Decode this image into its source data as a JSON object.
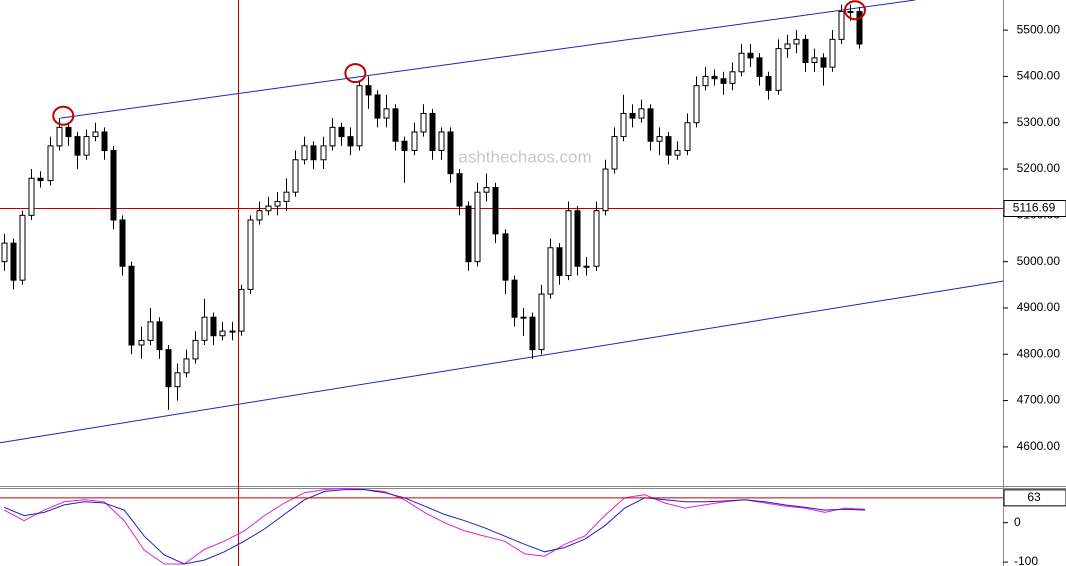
{
  "chart_data": {
    "type": "candlestick",
    "xlim": [
      -0.45,
      109.77
    ],
    "ylim": [
      4522,
      5565
    ],
    "yticks": [
      {
        "value": 4600,
        "label": "4600.00"
      },
      {
        "value": 4700,
        "label": "4700.00"
      },
      {
        "value": 4800,
        "label": "4800.00"
      },
      {
        "value": 4900,
        "label": "4900.00"
      },
      {
        "value": 5000,
        "label": "5000.00"
      },
      {
        "value": 5100,
        "label": "5100.00"
      },
      {
        "value": 5200,
        "label": "5200.00"
      },
      {
        "value": 5300,
        "label": "5300.00"
      },
      {
        "value": 5400,
        "label": "5400.00"
      },
      {
        "value": 5500,
        "label": "5500.00"
      }
    ],
    "open": [
      5000,
      5040,
      4960,
      5100,
      5180,
      5175,
      5250,
      5290,
      5270,
      5230,
      5270,
      5280,
      5240,
      5090,
      4990,
      4820,
      4830,
      4870,
      4810,
      4730,
      4760,
      4790,
      4830,
      4880,
      4840,
      4850,
      4850,
      4940,
      5090,
      5110,
      5120,
      5130,
      5150,
      5220,
      5250,
      5220,
      5250,
      5290,
      5270,
      5250,
      5380,
      5360,
      5310,
      5330,
      5260,
      5240,
      5280,
      5320,
      5240,
      5280,
      5190,
      5120,
      5000,
      5150,
      5160,
      5060,
      4960,
      4880,
      4880,
      4810,
      4930,
      5030,
      4970,
      5110,
      4990,
      4990,
      5110,
      5200,
      5270,
      5320,
      5310,
      5330,
      5260,
      5270,
      5230,
      5240,
      5300,
      5380,
      5400,
      5395,
      5385,
      5410,
      5450,
      5440,
      5400,
      5370,
      5460,
      5470,
      5480,
      5430,
      5440,
      5420,
      5480,
      5540,
      5540
    ],
    "high": [
      5060,
      5050,
      5110,
      5200,
      5195,
      5270,
      5310,
      5300,
      5280,
      5285,
      5300,
      5290,
      5250,
      5100,
      5000,
      4860,
      4900,
      4880,
      4820,
      4780,
      4810,
      4850,
      4920,
      4890,
      4870,
      4870,
      4950,
      5100,
      5130,
      5140,
      5150,
      5180,
      5240,
      5270,
      5260,
      5270,
      5310,
      5300,
      5290,
      5390,
      5400,
      5370,
      5360,
      5340,
      5270,
      5300,
      5340,
      5330,
      5290,
      5290,
      5200,
      5130,
      5170,
      5190,
      5170,
      5070,
      4970,
      4900,
      4890,
      4950,
      5050,
      5040,
      5130,
      5120,
      5010,
      5130,
      5220,
      5290,
      5360,
      5340,
      5350,
      5340,
      5290,
      5280,
      5260,
      5320,
      5400,
      5420,
      5415,
      5410,
      5430,
      5470,
      5470,
      5450,
      5410,
      5480,
      5490,
      5500,
      5490,
      5460,
      5450,
      5500,
      5555,
      5555,
      5550
    ],
    "low": [
      4980,
      4940,
      4950,
      5090,
      5160,
      5165,
      5240,
      5250,
      5200,
      5220,
      5260,
      5220,
      5070,
      4970,
      4800,
      4790,
      4820,
      4790,
      4680,
      4700,
      4750,
      4780,
      4820,
      4820,
      4830,
      4830,
      4840,
      4930,
      5080,
      5100,
      5100,
      5110,
      5140,
      5210,
      5200,
      5200,
      5240,
      5250,
      5230,
      5240,
      5330,
      5290,
      5290,
      5240,
      5170,
      5230,
      5270,
      5220,
      5220,
      5170,
      5100,
      4980,
      4990,
      5130,
      5040,
      4930,
      4860,
      4840,
      4790,
      4800,
      4920,
      4950,
      4960,
      4970,
      4970,
      4980,
      5100,
      5190,
      5260,
      5290,
      5300,
      5240,
      5230,
      5210,
      5220,
      5230,
      5290,
      5370,
      5380,
      5360,
      5370,
      5400,
      5420,
      5380,
      5350,
      5360,
      5440,
      5450,
      5410,
      5410,
      5380,
      5410,
      5470,
      5520,
      5460
    ],
    "close": [
      5040,
      4960,
      5100,
      5180,
      5175,
      5250,
      5290,
      5270,
      5230,
      5270,
      5280,
      5240,
      5090,
      4990,
      4820,
      4830,
      4870,
      4810,
      4730,
      4760,
      4790,
      4830,
      4880,
      4840,
      4850,
      4850,
      4940,
      5090,
      5110,
      5120,
      5130,
      5150,
      5220,
      5250,
      5220,
      5250,
      5290,
      5270,
      5250,
      5380,
      5360,
      5310,
      5330,
      5260,
      5240,
      5280,
      5320,
      5240,
      5280,
      5190,
      5120,
      5000,
      5150,
      5160,
      5060,
      4960,
      4880,
      4880,
      4810,
      4930,
      5030,
      4970,
      5110,
      4990,
      4990,
      5110,
      5200,
      5270,
      5320,
      5310,
      5330,
      5260,
      5270,
      5230,
      5240,
      5300,
      5380,
      5400,
      5395,
      5385,
      5410,
      5450,
      5440,
      5400,
      5370,
      5460,
      5470,
      5480,
      5430,
      5440,
      5420,
      5480,
      5540,
      5540,
      5470
    ],
    "trendlines": [
      {
        "x": [
          6.2,
          100.1
        ],
        "y": [
          5310,
          5565
        ],
        "color": "#2020c0"
      },
      {
        "x": [
          -0.44,
          109.77
        ],
        "y": [
          4609,
          4958
        ],
        "color": "#2020c0"
      }
    ],
    "circles": [
      {
        "x": 6.5,
        "y": 5315,
        "color": "#c00000"
      },
      {
        "x": 38.6,
        "y": 5407,
        "color": "#c00000"
      },
      {
        "x": 93.5,
        "y": 5543,
        "color": "#c00000"
      }
    ],
    "crosshair": {
      "x": 25.7,
      "y": 5116.69,
      "color": "#c00000"
    },
    "watermark": "ashthechaos.com",
    "indicator": {
      "type": "line",
      "ylim": [
        -110,
        88
      ],
      "yticks": [
        0,
        -100
      ],
      "level": 63,
      "x": [
        0,
        2.2,
        4.4,
        6.6,
        8.8,
        11,
        13.2,
        15.4,
        17.6,
        19.8,
        22,
        24.2,
        26.4,
        28.6,
        30.8,
        33,
        35.2,
        37.4,
        39.6,
        41.8,
        44,
        46.2,
        48.4,
        50.6,
        52.8,
        55,
        57.2,
        59.4,
        61.6,
        63.8,
        66,
        68.2,
        70.4,
        72.6,
        74.8,
        77,
        79.2,
        81.4,
        83.6,
        85.8,
        88,
        90.2,
        92.4,
        94.6
      ],
      "series": [
        {
          "color": "#e020e0",
          "values": [
            32,
            5,
            32,
            53,
            58,
            53,
            5,
            -70,
            -105,
            -105,
            -68,
            -47,
            -21,
            18,
            50,
            76,
            84,
            87,
            84,
            79,
            58,
            26,
            0,
            -21,
            -34,
            -47,
            -79,
            -85,
            -55,
            -34,
            18,
            63,
            71,
            50,
            37,
            45,
            53,
            58,
            50,
            42,
            37,
            26,
            37,
            34
          ]
        },
        {
          "color": "#2020c0",
          "values": [
            39,
            18,
            26,
            45,
            53,
            50,
            32,
            -34,
            -82,
            -105,
            -95,
            -74,
            -47,
            -16,
            21,
            58,
            79,
            84,
            84,
            76,
            63,
            42,
            21,
            5,
            -13,
            -34,
            -55,
            -74,
            -63,
            -42,
            -8,
            37,
            63,
            58,
            53,
            53,
            55,
            58,
            53,
            45,
            39,
            32,
            34,
            32
          ]
        }
      ]
    }
  }
}
